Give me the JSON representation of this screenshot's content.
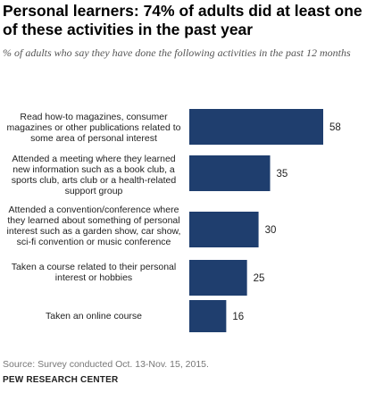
{
  "title": "Personal learners: 74% of adults did at least one of these activities in the past year",
  "subtitle": "% of adults who say they have done the following activities in the past 12 months",
  "source": "Source: Survey conducted Oct. 13-Nov. 15, 2015.",
  "brand": "PEW RESEARCH CENTER",
  "colors": {
    "bar": "#1f3e6e",
    "text": "#222222"
  },
  "chart_data": {
    "type": "bar",
    "orientation": "horizontal",
    "categories": [
      "Read how-to magazines, consumer magazines or other publications related to some area of personal interest",
      "Attended a meeting where they learned new information such as a book club, a sports club, arts club or a health-related support group",
      "Attended a convention/conference where they learned about something of personal interest such as a garden show, car show, sci-fi convention or music conference",
      "Taken a course related to their personal interest or hobbies",
      "Taken an online course"
    ],
    "values": [
      58,
      35,
      30,
      25,
      16
    ],
    "value_labels": [
      "58",
      "35",
      "30",
      "25",
      "16"
    ],
    "xlim": [
      0,
      58
    ],
    "grid": false
  }
}
